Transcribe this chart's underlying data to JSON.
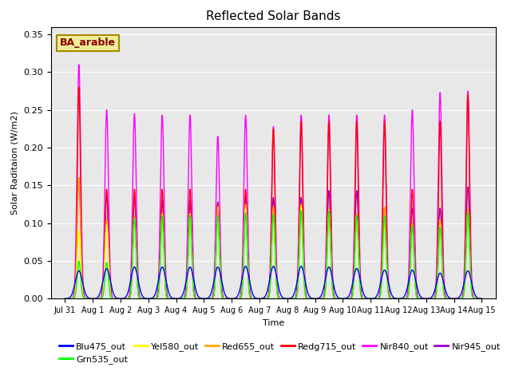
{
  "title": "Reflected Solar Bands",
  "xlabel": "Time",
  "ylabel": "Solar Raditaion (W/m2)",
  "annotation_text": "BA_arable",
  "annotation_color": "#8B0000",
  "annotation_bg": "#EEEE99",
  "xlim_start": -0.5,
  "xlim_end": 15.5,
  "ylim": [
    0.0,
    0.36
  ],
  "yticks": [
    0.0,
    0.05,
    0.1,
    0.15,
    0.2,
    0.25,
    0.3,
    0.35
  ],
  "xtick_labels": [
    "Jul 31",
    "Aug 1",
    "Aug 2",
    "Aug 3",
    "Aug 4",
    "Aug 5",
    "Aug 6",
    "Aug 7",
    "Aug 8",
    "Aug 9",
    "Aug 10",
    "Aug 11",
    "Aug 12",
    "Aug 13",
    "Aug 14",
    "Aug 15"
  ],
  "xtick_positions": [
    0,
    1,
    2,
    3,
    4,
    5,
    6,
    7,
    8,
    9,
    10,
    11,
    12,
    13,
    14,
    15
  ],
  "series_colors": {
    "Blu475_out": "#0000FF",
    "Grn535_out": "#00FF00",
    "Yel580_out": "#FFFF00",
    "Red655_out": "#FFA500",
    "Redg715_out": "#FF0000",
    "Nir840_out": "#FF00FF",
    "Nir945_out": "#9900CC"
  },
  "bg_color": "#E8E8E8",
  "fig_bg": "#FFFFFF",
  "day_peaks_nir840": [
    0.31,
    0.25,
    0.245,
    0.243,
    0.243,
    0.215,
    0.243,
    0.228,
    0.243,
    0.243,
    0.243,
    0.243,
    0.25,
    0.273,
    0.275
  ],
  "day_peaks_nir945": [
    0.16,
    0.138,
    0.132,
    0.13,
    0.13,
    0.128,
    0.134,
    0.134,
    0.134,
    0.143,
    0.143,
    0.12,
    0.12,
    0.12,
    0.148
  ],
  "day_peaks_redg715": [
    0.28,
    0.145,
    0.145,
    0.145,
    0.145,
    0.125,
    0.145,
    0.225,
    0.235,
    0.235,
    0.235,
    0.235,
    0.145,
    0.235,
    0.27
  ],
  "day_peaks_red655": [
    0.16,
    0.105,
    0.108,
    0.108,
    0.108,
    0.122,
    0.125,
    0.122,
    0.125,
    0.117,
    0.113,
    0.122,
    0.1,
    0.105,
    0.118
  ],
  "day_peaks_yel580": [
    0.09,
    0.098,
    0.107,
    0.112,
    0.112,
    0.108,
    0.12,
    0.109,
    0.122,
    0.117,
    0.11,
    0.099,
    0.096,
    0.097,
    0.115
  ],
  "day_peaks_grn535": [
    0.05,
    0.048,
    0.107,
    0.11,
    0.11,
    0.11,
    0.114,
    0.112,
    0.117,
    0.116,
    0.11,
    0.11,
    0.097,
    0.095,
    0.114
  ],
  "day_peaks_blu475": [
    0.037,
    0.04,
    0.042,
    0.042,
    0.042,
    0.042,
    0.043,
    0.043,
    0.043,
    0.042,
    0.04,
    0.038,
    0.038,
    0.034,
    0.037
  ]
}
